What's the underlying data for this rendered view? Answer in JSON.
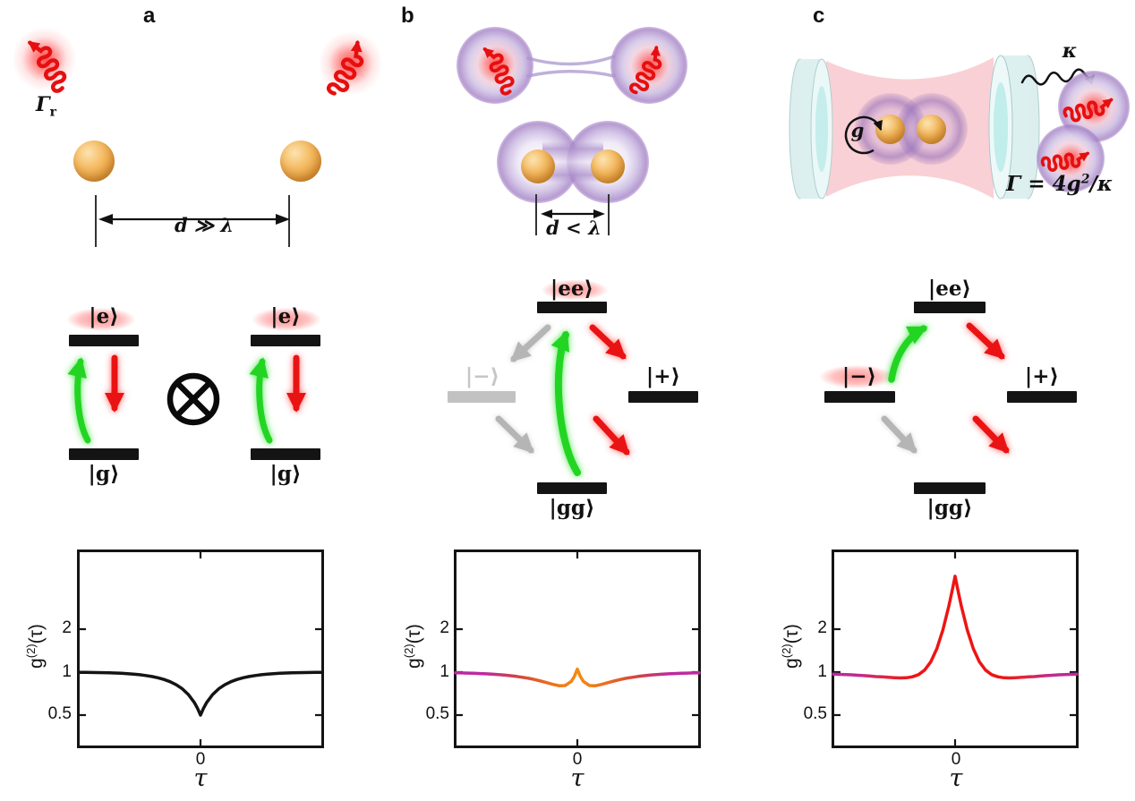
{
  "panels": {
    "a": {
      "label": "a",
      "top": {
        "gamma_r_base": "Γ",
        "gamma_r_sub": "r",
        "distance_label": "d ≫ λ"
      },
      "levels": {
        "excited": "|e⟩",
        "ground": "|g⟩",
        "tensor_symbol": "⊗"
      }
    },
    "b": {
      "label": "b",
      "top": {
        "distance_label": "d < λ"
      },
      "levels": {
        "ee": "|ee⟩",
        "minus": "|−⟩",
        "plus": "|+⟩",
        "gg": "|gg⟩"
      }
    },
    "c": {
      "label": "c",
      "top": {
        "kappa": "κ",
        "coupling": "g",
        "gamma_eq_pre": "Γ = 4g",
        "gamma_eq_sup": "2",
        "gamma_eq_post": "/κ"
      },
      "levels": {
        "ee": "|ee⟩",
        "minus": "|−⟩",
        "plus": "|+⟩",
        "gg": "|gg⟩"
      }
    }
  },
  "axis": {
    "ylabel_base": "g",
    "ylabel_sup": "(2)",
    "ylabel_arg": "(τ)",
    "ytick_2": "2",
    "ytick_1": "1",
    "ytick_05": "0.5",
    "xtick_0": "0",
    "xlabel": "τ"
  },
  "chart_data": [
    {
      "panel": "a",
      "type": "line",
      "xlabel": "τ",
      "ylabel": "g⁽²⁾(τ)",
      "yscale": "log",
      "xlim": [
        -5,
        5
      ],
      "ylim": [
        0.29,
        7
      ],
      "yticks": [
        0.5,
        1,
        2
      ],
      "xticks": [
        0
      ],
      "line_color": "#141414",
      "x": [
        -5,
        -4.75,
        -4.5,
        -4.25,
        -4,
        -3.75,
        -3.5,
        -3.25,
        -3,
        -2.75,
        -2.5,
        -2.25,
        -2,
        -1.75,
        -1.5,
        -1.25,
        -1,
        -0.75,
        -0.5,
        -0.25,
        -0.125,
        0,
        0.125,
        0.25,
        0.5,
        0.75,
        1,
        1.25,
        1.5,
        1.75,
        2,
        2.25,
        2.5,
        2.75,
        3,
        3.25,
        3.5,
        3.75,
        4,
        4.25,
        4.5,
        4.75,
        5
      ],
      "y": [
        0.997,
        0.996,
        0.994,
        0.993,
        0.991,
        0.988,
        0.985,
        0.981,
        0.975,
        0.968,
        0.959,
        0.947,
        0.932,
        0.913,
        0.888,
        0.857,
        0.816,
        0.764,
        0.697,
        0.611,
        0.559,
        0.5,
        0.559,
        0.611,
        0.697,
        0.764,
        0.816,
        0.857,
        0.888,
        0.913,
        0.932,
        0.947,
        0.959,
        0.968,
        0.975,
        0.981,
        0.985,
        0.988,
        0.991,
        0.993,
        0.994,
        0.996,
        0.997
      ]
    },
    {
      "panel": "b",
      "type": "line",
      "xlabel": "τ",
      "ylabel": "g⁽²⁾(τ)",
      "yscale": "log",
      "xlim": [
        -5,
        5
      ],
      "ylim": [
        0.29,
        7
      ],
      "yticks": [
        0.5,
        1,
        2
      ],
      "xticks": [
        0
      ],
      "line_gradient": [
        "#bd2a9e",
        "#d04343",
        "#f68a12",
        "#d04343",
        "#bd2a9e"
      ],
      "x": [
        -5,
        -4.75,
        -4.5,
        -4.25,
        -4,
        -3.75,
        -3.5,
        -3.25,
        -3,
        -2.75,
        -2.5,
        -2.25,
        -2,
        -1.75,
        -1.5,
        -1.25,
        -1,
        -0.75,
        -0.5,
        -0.25,
        -0.125,
        0,
        0.125,
        0.25,
        0.5,
        0.75,
        1,
        1.25,
        1.5,
        1.75,
        2,
        2.25,
        2.5,
        2.75,
        3,
        3.25,
        3.5,
        3.75,
        4,
        4.25,
        4.5,
        4.75,
        5
      ],
      "y": [
        0.989,
        0.987,
        0.984,
        0.981,
        0.977,
        0.973,
        0.967,
        0.961,
        0.953,
        0.944,
        0.933,
        0.92,
        0.905,
        0.887,
        0.866,
        0.843,
        0.82,
        0.803,
        0.805,
        0.861,
        0.931,
        1.05,
        0.931,
        0.861,
        0.805,
        0.803,
        0.82,
        0.843,
        0.866,
        0.887,
        0.905,
        0.92,
        0.933,
        0.944,
        0.953,
        0.961,
        0.967,
        0.973,
        0.977,
        0.981,
        0.984,
        0.987,
        0.989
      ]
    },
    {
      "panel": "c",
      "type": "line",
      "xlabel": "τ",
      "ylabel": "g⁽²⁾(τ)",
      "yscale": "log",
      "xlim": [
        -5,
        5
      ],
      "ylim": [
        0.29,
        7
      ],
      "yticks": [
        0.5,
        1,
        2
      ],
      "xticks": [
        0
      ],
      "line_gradient": [
        "#bd2a9e",
        "#ee1414",
        "#bd2a9e"
      ],
      "x": [
        -5,
        -4.75,
        -4.5,
        -4.25,
        -4,
        -3.75,
        -3.5,
        -3.25,
        -3,
        -2.75,
        -2.5,
        -2.25,
        -2,
        -1.75,
        -1.5,
        -1.25,
        -1,
        -0.75,
        -0.5,
        -0.25,
        -0.125,
        0,
        0.125,
        0.25,
        0.5,
        0.75,
        1,
        1.25,
        1.5,
        1.75,
        2,
        2.25,
        2.5,
        2.75,
        3,
        3.25,
        3.5,
        3.75,
        4,
        4.25,
        4.5,
        4.75,
        5
      ],
      "y": [
        0.969,
        0.965,
        0.961,
        0.957,
        0.951,
        0.945,
        0.939,
        0.931,
        0.926,
        0.92,
        0.914,
        0.911,
        0.913,
        0.927,
        0.961,
        1.034,
        1.179,
        1.457,
        1.978,
        2.938,
        3.688,
        4.7,
        3.688,
        2.938,
        1.978,
        1.457,
        1.179,
        1.034,
        0.961,
        0.927,
        0.913,
        0.911,
        0.914,
        0.92,
        0.926,
        0.931,
        0.939,
        0.945,
        0.951,
        0.957,
        0.961,
        0.965,
        0.969
      ]
    }
  ]
}
